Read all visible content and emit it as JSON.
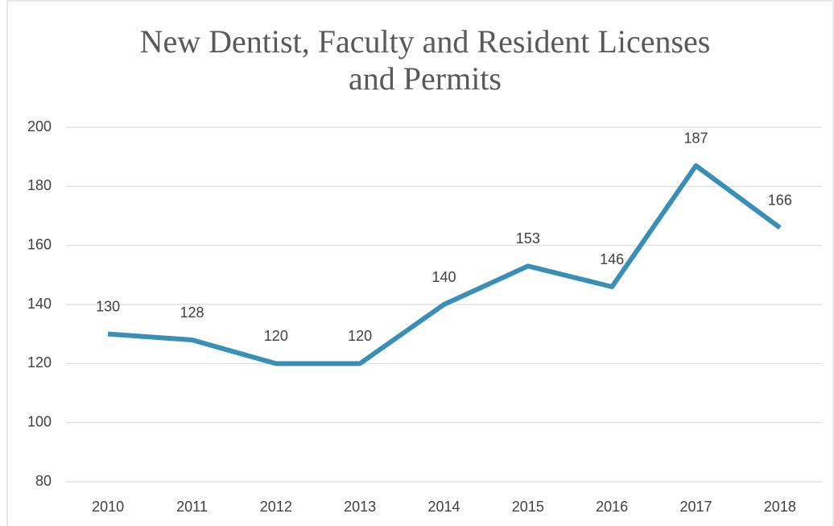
{
  "chart_data": {
    "type": "line",
    "title": [
      "New Dentist, Faculty and Resident Licenses",
      "and Permits"
    ],
    "categories": [
      "2010",
      "2011",
      "2012",
      "2013",
      "2014",
      "2015",
      "2016",
      "2017",
      "2018"
    ],
    "values": [
      130,
      128,
      120,
      120,
      140,
      153,
      146,
      187,
      166
    ],
    "color": "#3a8fb7",
    "ylim": [
      80,
      200
    ],
    "yticks": [
      80,
      100,
      120,
      140,
      160,
      180,
      200
    ],
    "grid": true
  }
}
